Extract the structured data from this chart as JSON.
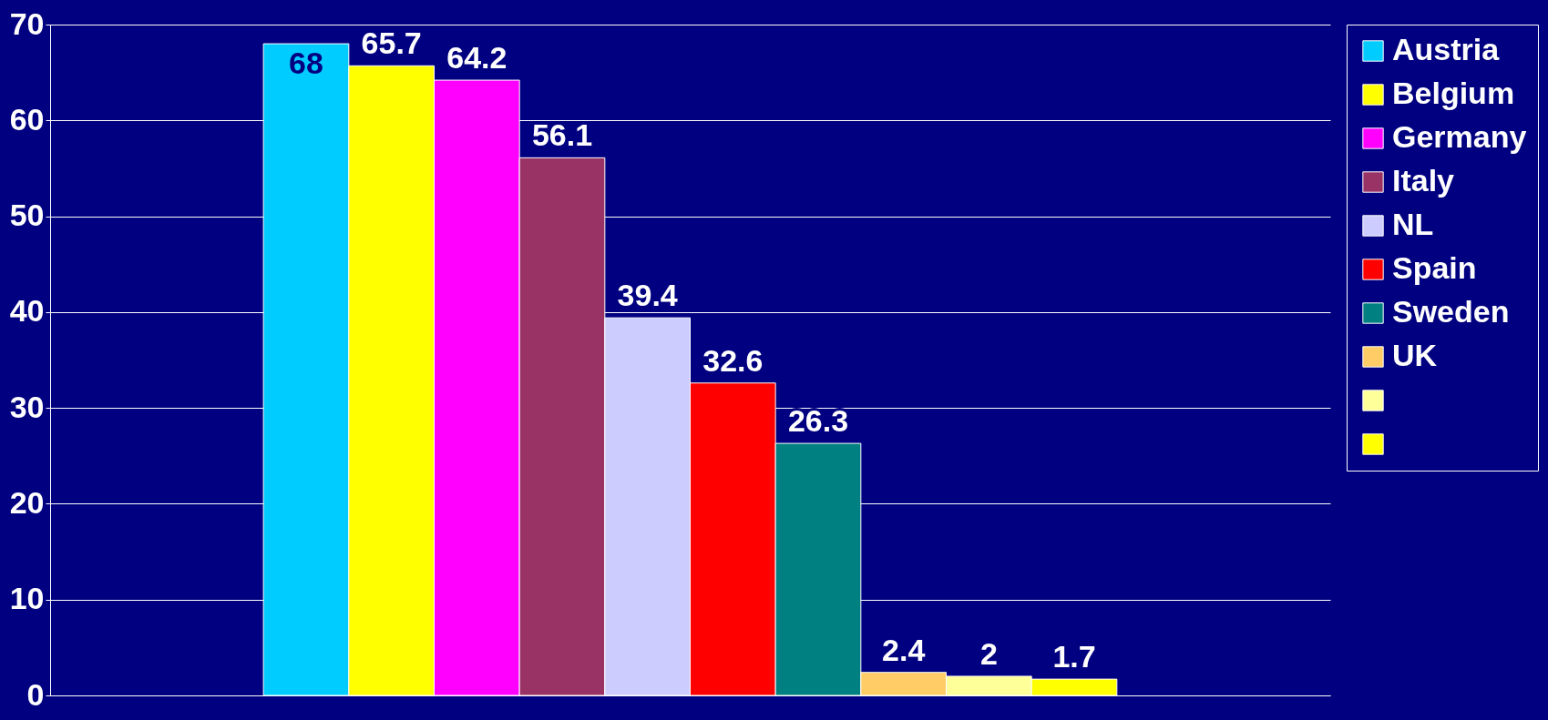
{
  "chart_data": {
    "type": "bar",
    "categories": [
      null
    ],
    "series": [
      {
        "name": "Austria",
        "color": "#00ccff",
        "values": [
          68
        ]
      },
      {
        "name": "Belgium",
        "color": "#ffff00",
        "values": [
          65.7
        ]
      },
      {
        "name": "Germany",
        "color": "#ff00ff",
        "values": [
          64.2
        ]
      },
      {
        "name": "Italy",
        "color": "#993366",
        "values": [
          56.1
        ]
      },
      {
        "name": "NL",
        "color": "#ccccff",
        "values": [
          39.4
        ]
      },
      {
        "name": "Spain",
        "color": "#ff0000",
        "values": [
          32.6
        ]
      },
      {
        "name": "Sweden",
        "color": "#008080",
        "values": [
          26.3
        ]
      },
      {
        "name": "UK",
        "color": "#ffcc66",
        "values": [
          2.4
        ]
      },
      {
        "color": "#ffff99",
        "values": [
          2
        ]
      },
      {
        "color": "#ffff00",
        "values": [
          1.7
        ]
      }
    ],
    "ylim": [
      0,
      70
    ],
    "yticks": [
      0,
      10,
      20,
      30,
      40,
      50,
      60,
      70
    ],
    "grid": "y",
    "legend": "right",
    "data_labels": true,
    "tick_labels": "y"
  }
}
